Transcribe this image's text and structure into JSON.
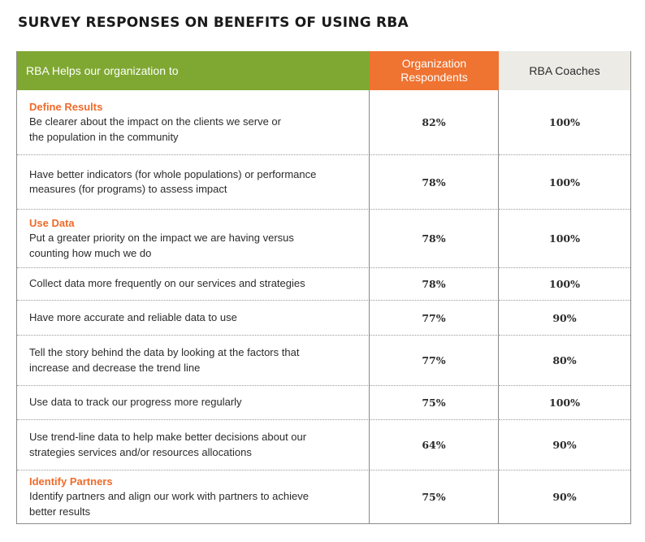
{
  "title": "SURVEY RESPONSES ON BENEFITS OF USING RBA",
  "header": {
    "col1": "RBA Helps our organization to",
    "col2_line1": "Organization",
    "col2_line2": "Respondents",
    "col3": "RBA Coaches"
  },
  "rows": [
    {
      "category": "Define Results",
      "line1": "Be clearer about the impact on the clients we serve or",
      "line2": "the population in the community",
      "org": "82%",
      "coach": "100%"
    },
    {
      "category": "",
      "line1": "Have better indicators (for whole populations) or performance",
      "line2": "measures (for programs) to assess impact",
      "org": "78%",
      "coach": "100%"
    },
    {
      "category": "Use Data",
      "line1": "Put a greater priority on the impact we are having versus",
      "line2": "counting how much we do",
      "org": "78%",
      "coach": "100%"
    },
    {
      "category": "",
      "line1": "Collect data more frequently on our services and strategies",
      "line2": "",
      "org": "78%",
      "coach": "100%"
    },
    {
      "category": "",
      "line1": "Have more accurate and reliable data to use",
      "line2": "",
      "org": "77%",
      "coach": "90%"
    },
    {
      "category": "",
      "line1": "Tell the story behind the data by looking at the factors that",
      "line2": "increase and decrease the trend line",
      "org": "77%",
      "coach": "80%"
    },
    {
      "category": "",
      "line1": "Use data to track our progress more regularly",
      "line2": "",
      "org": "75%",
      "coach": "100%"
    },
    {
      "category": "",
      "line1": "Use trend-line data to help make better decisions about our",
      "line2": "strategies services and/or resources allocations",
      "org": "64%",
      "coach": "90%"
    },
    {
      "category": "Identify Partners",
      "line1": "Identify partners and align our work with partners to achieve",
      "line2": "better results",
      "org": "75%",
      "coach": "90%"
    }
  ],
  "colors": {
    "header_green": "#7fa832",
    "header_orange": "#ef7331",
    "header_beige": "#ecebe6",
    "category_orange": "#ef6b2a"
  }
}
